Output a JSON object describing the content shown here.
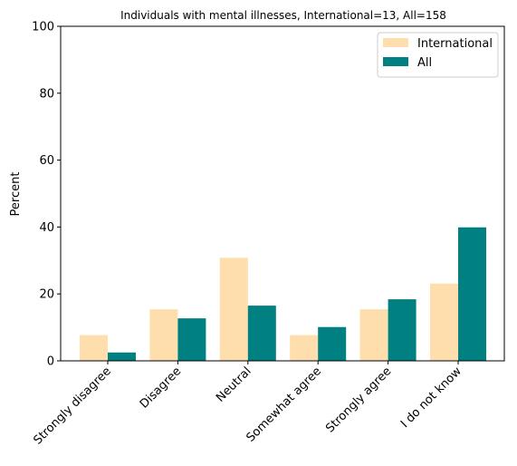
{
  "chart_data": {
    "type": "bar",
    "title": "Individuals with mental illnesses, International=13, All=158",
    "xlabel": "",
    "ylabel": "Percent",
    "ylim": [
      0,
      100
    ],
    "yticks": [
      "0",
      "20",
      "40",
      "60",
      "80",
      "100"
    ],
    "categories": [
      "Strongly disagree",
      "Disagree",
      "Neutral",
      "Somewhat agree",
      "Strongly agree",
      "I do not know"
    ],
    "series": [
      {
        "name": "International",
        "color": "#fddeac",
        "values": [
          7.7,
          15.4,
          30.8,
          7.7,
          15.4,
          23.1
        ]
      },
      {
        "name": "All",
        "color": "#008080",
        "values": [
          2.5,
          12.7,
          16.5,
          10.1,
          18.4,
          39.9
        ]
      }
    ],
    "legend": {
      "placement": "top-right"
    },
    "grid": false
  }
}
